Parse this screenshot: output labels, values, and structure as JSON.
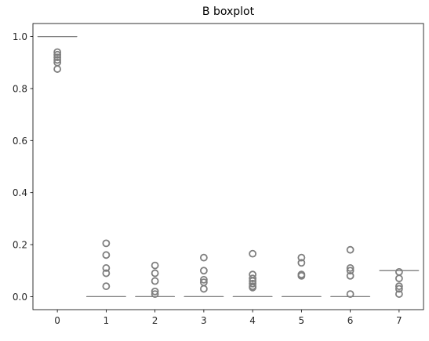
{
  "chart_data": {
    "type": "boxplot",
    "title": "B boxplot",
    "xlabel": "",
    "ylabel": "",
    "categories": [
      "0",
      "1",
      "2",
      "3",
      "4",
      "5",
      "6",
      "7"
    ],
    "ylim": [
      -0.05,
      1.05
    ],
    "yticks": [
      "0.0",
      "0.2",
      "0.4",
      "0.6",
      "0.8",
      "1.0"
    ],
    "ytick_values": [
      0.0,
      0.2,
      0.4,
      0.6,
      0.8,
      1.0
    ],
    "grid": false,
    "box_color": "#7f7f7f",
    "boxes": [
      {
        "category": "0",
        "median": 1.0,
        "q1": 1.0,
        "q3": 1.0,
        "whisker_low": 1.0,
        "whisker_high": 1.0,
        "outliers": [
          0.94,
          0.93,
          0.92,
          0.91,
          0.9,
          0.875
        ]
      },
      {
        "category": "1",
        "median": 0.0,
        "q1": 0.0,
        "q3": 0.0,
        "whisker_low": 0.0,
        "whisker_high": 0.0,
        "outliers": [
          0.205,
          0.16,
          0.11,
          0.09,
          0.04
        ]
      },
      {
        "category": "2",
        "median": 0.0,
        "q1": 0.0,
        "q3": 0.0,
        "whisker_low": 0.0,
        "whisker_high": 0.0,
        "outliers": [
          0.12,
          0.09,
          0.06,
          0.02,
          0.01
        ]
      },
      {
        "category": "3",
        "median": 0.0,
        "q1": 0.0,
        "q3": 0.0,
        "whisker_low": 0.0,
        "whisker_high": 0.0,
        "outliers": [
          0.15,
          0.1,
          0.065,
          0.055,
          0.03
        ]
      },
      {
        "category": "4",
        "median": 0.0,
        "q1": 0.0,
        "q3": 0.0,
        "whisker_low": 0.0,
        "whisker_high": 0.0,
        "outliers": [
          0.165,
          0.085,
          0.07,
          0.06,
          0.05,
          0.04,
          0.035
        ]
      },
      {
        "category": "5",
        "median": 0.0,
        "q1": 0.0,
        "q3": 0.0,
        "whisker_low": 0.0,
        "whisker_high": 0.0,
        "outliers": [
          0.15,
          0.13,
          0.085,
          0.08
        ]
      },
      {
        "category": "6",
        "median": 0.0,
        "q1": 0.0,
        "q3": 0.0,
        "whisker_low": 0.0,
        "whisker_high": 0.0,
        "outliers": [
          0.18,
          0.11,
          0.1,
          0.08,
          0.01
        ]
      },
      {
        "category": "7",
        "median": 0.1,
        "q1": 0.1,
        "q3": 0.1,
        "whisker_low": 0.1,
        "whisker_high": 0.1,
        "outliers": [
          0.095,
          0.07,
          0.04,
          0.03,
          0.01
        ]
      }
    ]
  }
}
